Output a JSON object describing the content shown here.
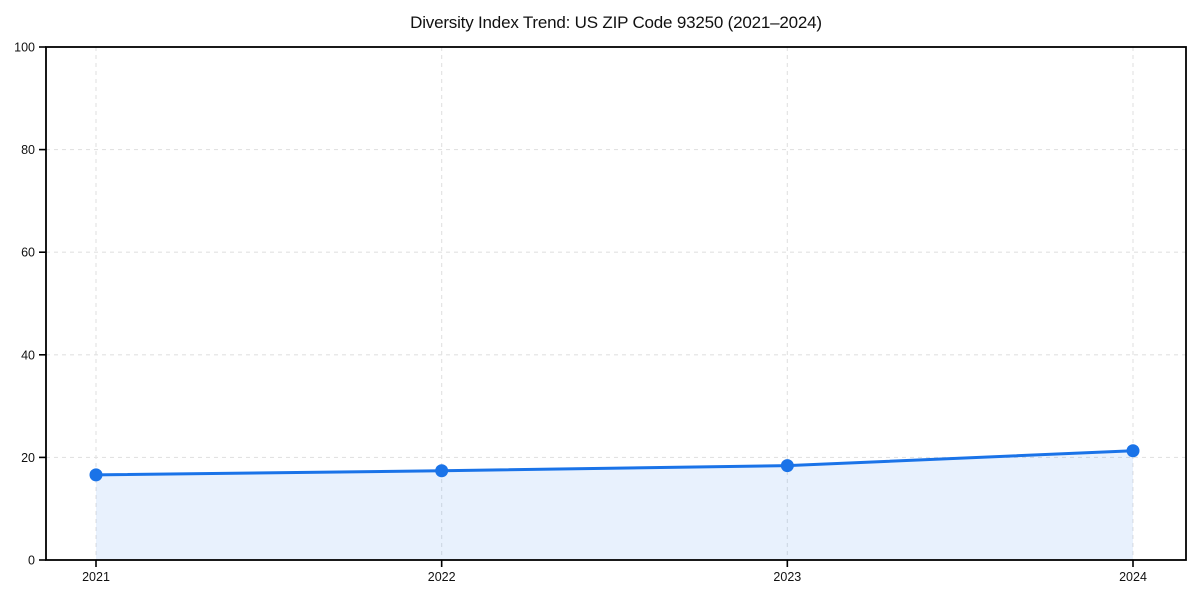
{
  "chart_data": {
    "type": "area",
    "title": "Diversity Index Trend: US ZIP Code 93250 (2021–2024)",
    "categories": [
      "2021",
      "2022",
      "2023",
      "2024"
    ],
    "series": [
      {
        "name": "Diversity Index",
        "values": [
          16.6,
          17.4,
          18.4,
          21.3
        ]
      }
    ],
    "xlabel": "",
    "ylabel": "",
    "ylim": [
      0,
      100
    ],
    "yticks": [
      0,
      20,
      40,
      60,
      80,
      100
    ],
    "grid": "dashed",
    "legend": "none",
    "colors": {
      "line": "#1a73e8",
      "marker": "#1a73e8",
      "area_fill": "rgba(26, 115, 232, 0.10)",
      "grid_line": "#e2e2e2",
      "spine": "#000000",
      "tick_label": "#111111",
      "background": "#ffffff"
    }
  }
}
